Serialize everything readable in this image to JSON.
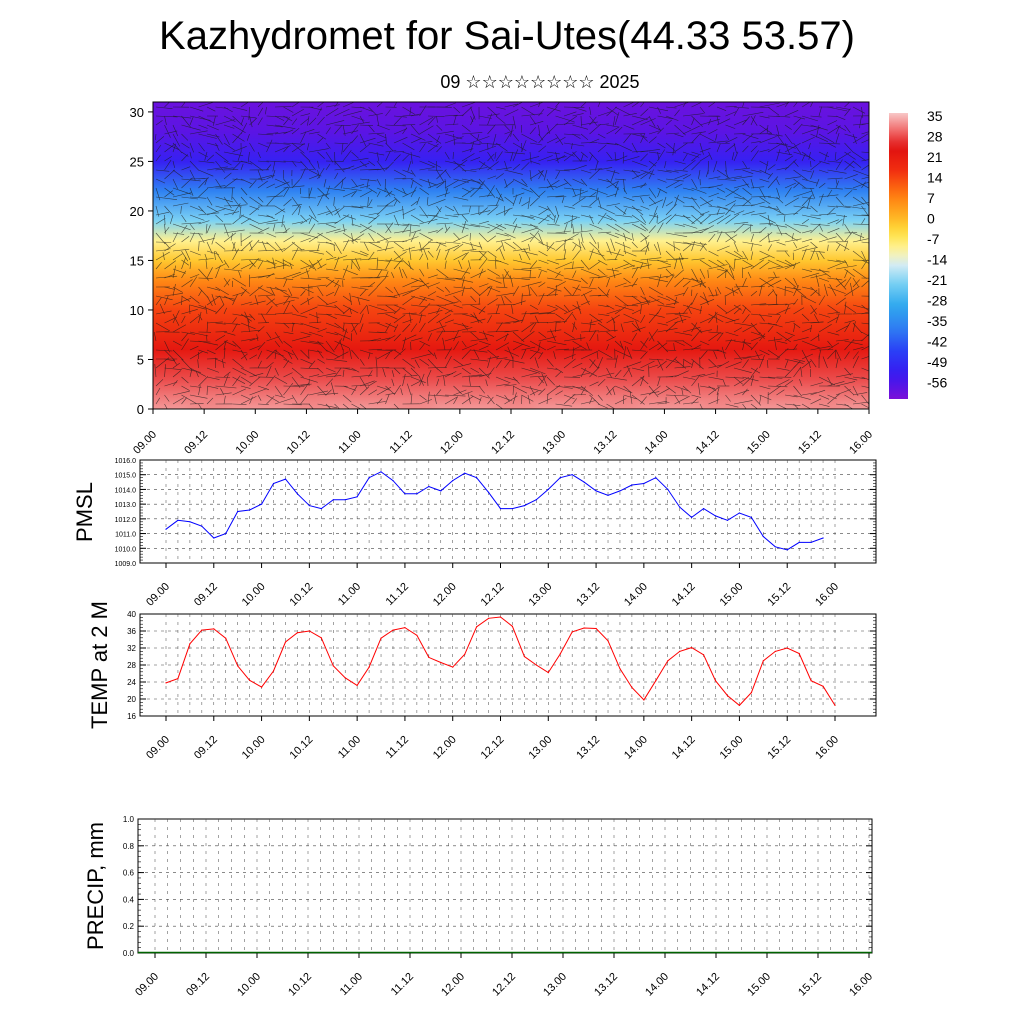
{
  "header": {
    "title": "Kazhydromet for Sai-Utes(44.33 53.57)",
    "subtitle": "09 ☆☆☆☆☆☆☆☆ 2025"
  },
  "time_ticks": [
    "09.00",
    "09.12",
    "10.00",
    "10.12",
    "11.00",
    "11.12",
    "12.00",
    "12.12",
    "13.00",
    "13.12",
    "14.00",
    "14.12",
    "15.00",
    "15.12",
    "16.00"
  ],
  "chart_data": [
    {
      "type": "heatmap",
      "title": "Kazhydromet for Sai-Utes(44.33 53.57)",
      "subtitle": "09 ☆☆☆☆☆☆☆☆ 2025",
      "x_ticks": [
        "09.00",
        "09.12",
        "10.00",
        "10.12",
        "11.00",
        "11.12",
        "12.00",
        "12.12",
        "13.00",
        "13.12",
        "14.00",
        "14.12",
        "15.00",
        "15.12",
        "16.00"
      ],
      "y_ticks": [
        0,
        5,
        10,
        15,
        20,
        25,
        30
      ],
      "ylim": [
        0,
        31
      ],
      "colorbar_labels": [
        35,
        28,
        21,
        14,
        7,
        0,
        -7,
        -14,
        -21,
        -28,
        -35,
        -42,
        -49,
        -56
      ],
      "colorbar_range": [
        -60,
        38
      ],
      "temperature_profile": [
        {
          "level": 0,
          "value": 35
        },
        {
          "level": 3,
          "value": 30
        },
        {
          "level": 6,
          "value": 24
        },
        {
          "level": 10,
          "value": 16
        },
        {
          "level": 13,
          "value": 8
        },
        {
          "level": 15,
          "value": 0
        },
        {
          "level": 17,
          "value": -8
        },
        {
          "level": 19,
          "value": -20
        },
        {
          "level": 22,
          "value": -35
        },
        {
          "level": 25,
          "value": -50
        },
        {
          "level": 28,
          "value": -56
        },
        {
          "level": 31,
          "value": -58
        }
      ],
      "overlay": "wind vectors"
    },
    {
      "type": "line",
      "ylabel": "PMSL",
      "ylim": [
        1009,
        1016
      ],
      "y_ticks": [
        "1009.0",
        "1010.0",
        "1011.0",
        "1012.0",
        "1013.0",
        "1014.0",
        "1015.0",
        "1016.0"
      ],
      "x_ticks": [
        "09.00",
        "09.12",
        "10.00",
        "10.12",
        "11.00",
        "11.12",
        "12.00",
        "12.12",
        "13.00",
        "13.12",
        "14.00",
        "14.12",
        "15.00",
        "15.12",
        "16.00"
      ],
      "grid": true,
      "color": "#0000ff",
      "x_step_hours": 3,
      "values": [
        1011.3,
        1011.9,
        1011.8,
        1011.5,
        1010.7,
        1011.0,
        1012.5,
        1012.6,
        1013.0,
        1014.4,
        1014.7,
        1013.7,
        1012.9,
        1012.7,
        1013.3,
        1013.3,
        1013.5,
        1014.8,
        1015.2,
        1014.6,
        1013.7,
        1013.7,
        1014.2,
        1013.9,
        1014.6,
        1015.1,
        1014.8,
        1013.8,
        1012.7,
        1012.7,
        1012.9,
        1013.3,
        1014.0,
        1014.8,
        1015.0,
        1014.5,
        1013.9,
        1013.6,
        1013.9,
        1014.3,
        1014.4,
        1014.8,
        1014.0,
        1012.8,
        1012.1,
        1012.7,
        1012.2,
        1011.9,
        1012.4,
        1012.1,
        1010.8,
        1010.1,
        1009.9,
        1010.4,
        1010.4,
        1010.7
      ]
    },
    {
      "type": "line",
      "ylabel": "TEMP at 2 M",
      "ylim": [
        16,
        40
      ],
      "y_ticks": [
        "16",
        "20",
        "24",
        "28",
        "32",
        "36",
        "40"
      ],
      "x_ticks": [
        "09.00",
        "09.12",
        "10.00",
        "10.12",
        "11.00",
        "11.12",
        "12.00",
        "12.12",
        "13.00",
        "13.12",
        "14.00",
        "14.12",
        "15.00",
        "15.12",
        "16.00"
      ],
      "grid": true,
      "color": "#ff0000",
      "x_step_hours": 3,
      "values": [
        23.8,
        24.8,
        33.0,
        36.2,
        36.5,
        34.3,
        27.8,
        24.4,
        22.8,
        26.6,
        33.4,
        35.6,
        36.0,
        34.4,
        27.8,
        25.0,
        23.2,
        27.5,
        34.3,
        36.2,
        36.8,
        35.0,
        29.8,
        28.6,
        27.5,
        30.5,
        37.0,
        39.0,
        39.3,
        37.1,
        30.0,
        28.0,
        26.2,
        30.6,
        35.8,
        36.7,
        36.6,
        33.7,
        27.1,
        22.7,
        19.8,
        24.3,
        29.0,
        31.2,
        32.1,
        30.4,
        24.3,
        20.8,
        18.5,
        21.5,
        29.0,
        31.2,
        32.0,
        30.7,
        24.3,
        23.0,
        18.5
      ]
    },
    {
      "type": "bar",
      "ylabel": "PRECIP, mm",
      "ylim": [
        0,
        1
      ],
      "y_ticks": [
        "0.0",
        "0.2",
        "0.4",
        "0.6",
        "0.8",
        "1.0"
      ],
      "x_ticks": [
        "09.00",
        "09.12",
        "10.00",
        "10.12",
        "11.00",
        "11.12",
        "12.00",
        "12.12",
        "13.00",
        "13.12",
        "14.00",
        "14.12",
        "15.00",
        "15.12",
        "16.00"
      ],
      "grid": true,
      "color": "#006400",
      "values": [
        0,
        0,
        0,
        0,
        0,
        0,
        0,
        0,
        0,
        0,
        0,
        0,
        0,
        0,
        0,
        0,
        0,
        0,
        0,
        0,
        0,
        0,
        0,
        0,
        0,
        0,
        0,
        0,
        0,
        0,
        0,
        0,
        0,
        0,
        0,
        0,
        0,
        0,
        0,
        0,
        0,
        0,
        0,
        0,
        0,
        0,
        0,
        0,
        0,
        0,
        0,
        0,
        0,
        0,
        0,
        0
      ]
    }
  ]
}
